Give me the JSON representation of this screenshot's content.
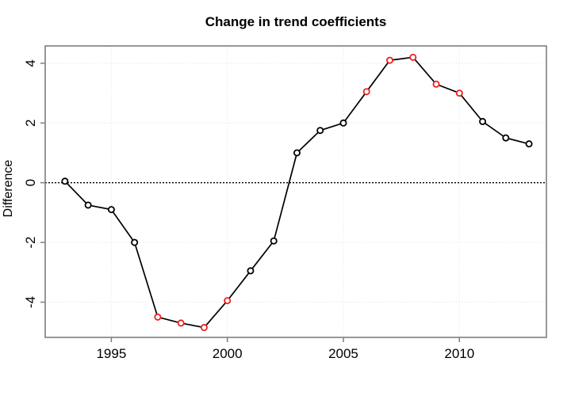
{
  "chart_data": {
    "type": "line",
    "title": "Change in trend coefficients",
    "xlabel": "",
    "ylabel": "Difference",
    "x": [
      1993,
      1994,
      1995,
      1996,
      1997,
      1998,
      1999,
      2000,
      2001,
      2002,
      2003,
      2004,
      2005,
      2006,
      2007,
      2008,
      2009,
      2010,
      2011,
      2012,
      2013
    ],
    "values": [
      0.05,
      -0.75,
      -0.9,
      -2.0,
      -4.5,
      -4.7,
      -4.85,
      -3.95,
      -2.95,
      -1.95,
      1.0,
      1.75,
      2.0,
      3.05,
      4.1,
      4.2,
      3.3,
      3.0,
      2.05,
      1.5,
      1.3
    ],
    "point_colors": [
      "black",
      "black",
      "black",
      "black",
      "red",
      "red",
      "red",
      "red",
      "black",
      "black",
      "black",
      "black",
      "black",
      "red",
      "red",
      "red",
      "red",
      "red",
      "black",
      "black",
      "black"
    ],
    "marker": "open-circle",
    "line_style": "solid",
    "xlim": [
      1992.15,
      2013.75
    ],
    "ylim": [
      -5.18,
      4.58
    ],
    "x_ticks": [
      1995,
      2000,
      2005,
      2010
    ],
    "x_tick_labels": [
      "1995",
      "2000",
      "2005",
      "2010"
    ],
    "y_ticks": [
      -4,
      -2,
      0,
      2,
      4
    ],
    "y_tick_labels": [
      "-4",
      "-2",
      "0",
      "2",
      "4"
    ],
    "grid": true,
    "zero_line": true,
    "legend_position": "none",
    "colors": {
      "background": "#ffffff",
      "frame": "#7d7d7d",
      "tick": "#7d7d7d",
      "grid": "#e7e7e7",
      "line": "#000000",
      "zero_line": "#000000",
      "point_black": "#000000",
      "point_red": "#ee2020",
      "label_text": "#000000"
    }
  }
}
